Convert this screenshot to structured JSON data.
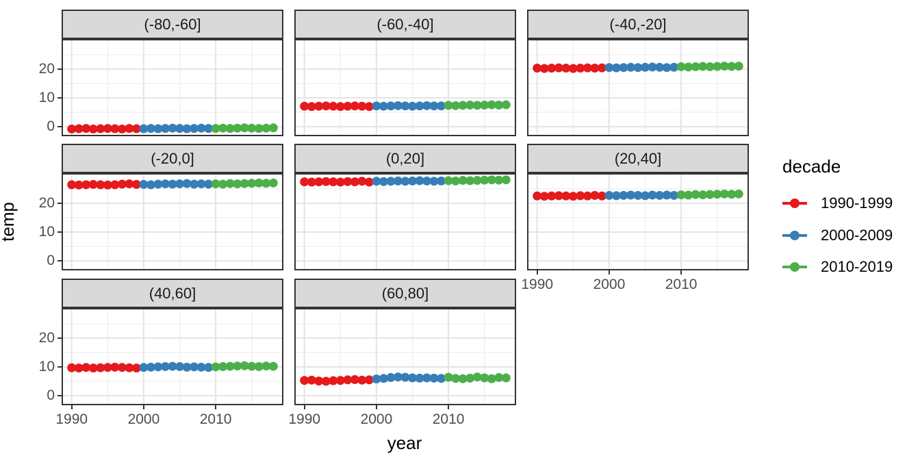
{
  "chart_data": {
    "type": "scatter",
    "title": "",
    "xlabel": "year",
    "ylabel": "temp",
    "legend_title": "decade",
    "legend_position": "right",
    "grid": true,
    "x_ticks": [
      1990,
      2000,
      2010
    ],
    "y_ticks": [
      0,
      10,
      20
    ],
    "x_minor": [
      1995,
      2005,
      2015
    ],
    "y_minor": [
      5,
      15,
      25
    ],
    "xlim": [
      1988.6,
      2019.4
    ],
    "ylim": [
      -3.3,
      30.4
    ],
    "x": [
      1990,
      1991,
      1992,
      1993,
      1994,
      1995,
      1996,
      1997,
      1998,
      1999,
      2000,
      2001,
      2002,
      2003,
      2004,
      2005,
      2006,
      2007,
      2008,
      2009,
      2010,
      2011,
      2012,
      2013,
      2014,
      2015,
      2016,
      2017,
      2018
    ],
    "series": [
      {
        "name": "1990-1999",
        "color": "#E41A1C",
        "year_range": [
          1990,
          1999
        ]
      },
      {
        "name": "2000-2009",
        "color": "#377EB8",
        "year_range": [
          2000,
          2009
        ]
      },
      {
        "name": "2010-2019",
        "color": "#4DAF4A",
        "year_range": [
          2010,
          2019
        ]
      }
    ],
    "facets": [
      {
        "label": "(-80,-60]",
        "temps": [
          -0.8,
          -0.7,
          -0.6,
          -0.8,
          -0.7,
          -0.6,
          -0.7,
          -0.8,
          -0.6,
          -0.7,
          -0.7,
          -0.6,
          -0.7,
          -0.6,
          -0.5,
          -0.6,
          -0.7,
          -0.6,
          -0.5,
          -0.6,
          -0.6,
          -0.5,
          -0.6,
          -0.5,
          -0.4,
          -0.5,
          -0.6,
          -0.5,
          -0.4
        ]
      },
      {
        "label": "(-60,-40]",
        "temps": [
          7.1,
          7.0,
          7.1,
          7.2,
          7.1,
          7.0,
          7.1,
          7.2,
          7.1,
          7.0,
          7.2,
          7.1,
          7.2,
          7.3,
          7.2,
          7.1,
          7.2,
          7.3,
          7.2,
          7.2,
          7.4,
          7.3,
          7.4,
          7.5,
          7.4,
          7.5,
          7.6,
          7.5,
          7.6
        ]
      },
      {
        "label": "(-40,-20]",
        "temps": [
          20.3,
          20.2,
          20.3,
          20.4,
          20.3,
          20.2,
          20.3,
          20.4,
          20.3,
          20.4,
          20.5,
          20.4,
          20.5,
          20.6,
          20.5,
          20.6,
          20.7,
          20.6,
          20.5,
          20.6,
          20.8,
          20.7,
          20.8,
          20.9,
          20.8,
          20.9,
          21.0,
          20.9,
          21.0
        ]
      },
      {
        "label": "(-20,0]",
        "temps": [
          26.4,
          26.3,
          26.4,
          26.5,
          26.4,
          26.3,
          26.4,
          26.6,
          26.7,
          26.5,
          26.5,
          26.4,
          26.6,
          26.7,
          26.6,
          26.7,
          26.8,
          26.6,
          26.7,
          26.6,
          26.7,
          26.6,
          26.8,
          26.7,
          26.8,
          26.9,
          27.0,
          26.9,
          27.0
        ]
      },
      {
        "label": "(0,20]",
        "temps": [
          27.4,
          27.3,
          27.4,
          27.5,
          27.4,
          27.3,
          27.5,
          27.4,
          27.6,
          27.3,
          27.6,
          27.5,
          27.6,
          27.7,
          27.6,
          27.7,
          27.8,
          27.7,
          27.6,
          27.7,
          27.8,
          27.7,
          27.9,
          27.8,
          27.9,
          28.0,
          28.1,
          28.0,
          28.1
        ]
      },
      {
        "label": "(20,40]",
        "temps": [
          22.5,
          22.4,
          22.5,
          22.6,
          22.5,
          22.4,
          22.6,
          22.5,
          22.7,
          22.5,
          22.7,
          22.6,
          22.7,
          22.8,
          22.7,
          22.6,
          22.8,
          22.7,
          22.8,
          22.7,
          22.9,
          22.8,
          23.0,
          22.9,
          23.0,
          23.1,
          23.2,
          23.1,
          23.2
        ]
      },
      {
        "label": "(40,60]",
        "temps": [
          9.7,
          9.6,
          9.8,
          9.6,
          9.7,
          9.8,
          9.9,
          9.8,
          9.7,
          9.6,
          9.8,
          9.9,
          10.0,
          10.1,
          10.2,
          10.1,
          9.9,
          10.0,
          9.9,
          9.8,
          10.0,
          10.1,
          10.2,
          10.3,
          10.4,
          10.2,
          10.1,
          10.3,
          10.2
        ]
      },
      {
        "label": "(60,80]",
        "temps": [
          5.3,
          5.4,
          5.1,
          5.0,
          5.2,
          5.3,
          5.5,
          5.6,
          5.4,
          5.5,
          5.8,
          6.0,
          6.3,
          6.5,
          6.4,
          6.2,
          6.1,
          6.2,
          6.1,
          6.0,
          6.4,
          6.0,
          5.9,
          6.1,
          6.5,
          6.2,
          5.9,
          6.3,
          6.2
        ]
      }
    ]
  },
  "theme": {
    "strip_fill": "#D9D9D9",
    "strip_border": "#333333",
    "panel_bg": "#FFFFFF",
    "panel_border": "#333333",
    "grid_major": "#E4E4E4",
    "grid_minor": "#F1F1F1",
    "tick_color": "#333333",
    "tick_label_color": "#4D4D4D",
    "text_color": "#000000"
  }
}
